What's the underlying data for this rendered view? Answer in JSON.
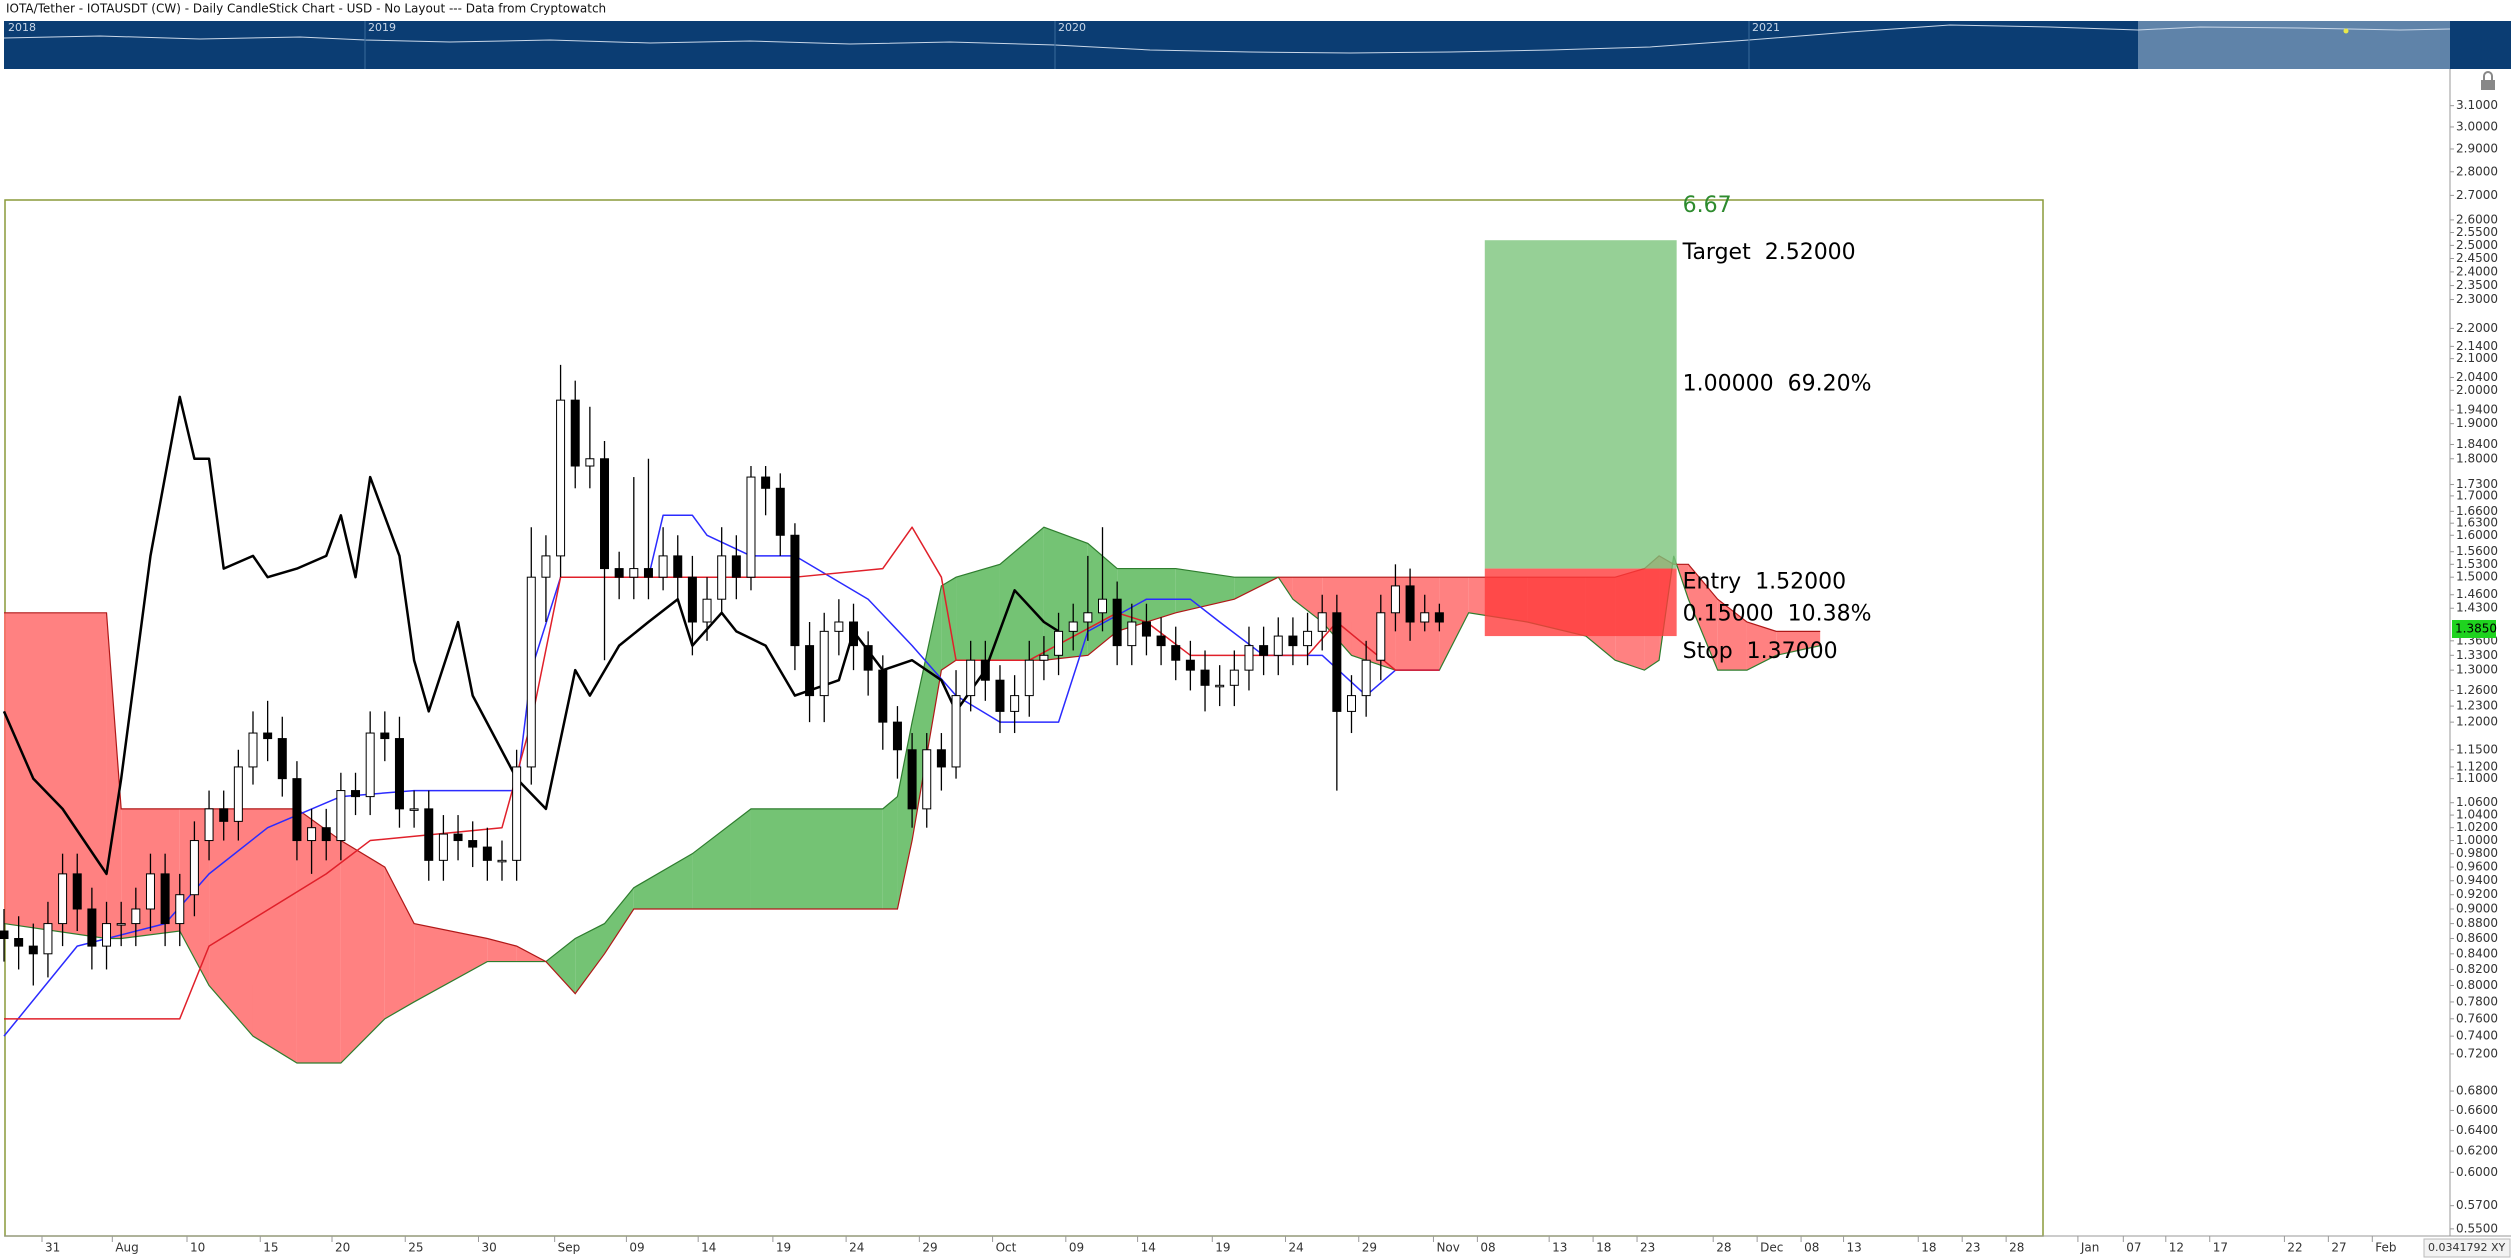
{
  "chart_data": {
    "type": "candlestick",
    "title": "IOTA/Tether - IOTAUSDT (CW) - Daily CandleStick Chart - USD - No Layout --- Data from Cryptowatch",
    "navigator_years": [
      "2018",
      "2019",
      "2020",
      "2021"
    ],
    "log_scale": true,
    "xlim": [
      0,
      167
    ],
    "ylim": [
      0.544,
      3.28
    ],
    "up_color": "#ffffff",
    "down_color": "#000000",
    "open": [
      0.87,
      0.86,
      0.85,
      0.84,
      0.88,
      0.95,
      0.9,
      0.85,
      0.88,
      0.88,
      0.9,
      0.95,
      0.88,
      0.92,
      1.0,
      1.05,
      1.03,
      1.12,
      1.18,
      1.17,
      1.1,
      1.0,
      1.02,
      1.0,
      1.08,
      1.07,
      1.18,
      1.17,
      1.05,
      1.05,
      0.97,
      1.01,
      1.0,
      0.99,
      0.97,
      0.97,
      1.12,
      1.5,
      1.55,
      1.97,
      1.78,
      1.8,
      1.52,
      1.5,
      1.52,
      1.5,
      1.55,
      1.5,
      1.4,
      1.45,
      1.55,
      1.5,
      1.75,
      1.72,
      1.6,
      1.35,
      1.25,
      1.38,
      1.4,
      1.35,
      1.3,
      1.2,
      1.15,
      1.05,
      1.15,
      1.12,
      1.25,
      1.32,
      1.28,
      1.22,
      1.25,
      1.32,
      1.33,
      1.38,
      1.4,
      1.42,
      1.45,
      1.35,
      1.4,
      1.37,
      1.35,
      1.32,
      1.3,
      1.27,
      1.27,
      1.3,
      1.35,
      1.33,
      1.37,
      1.35,
      1.38,
      1.42,
      1.22,
      1.25,
      1.32,
      1.42,
      1.48,
      1.4,
      1.42
    ],
    "high": [
      0.9,
      0.89,
      0.88,
      0.91,
      0.98,
      0.98,
      0.93,
      0.91,
      0.91,
      0.93,
      0.98,
      0.98,
      0.95,
      1.03,
      1.08,
      1.08,
      1.15,
      1.22,
      1.24,
      1.21,
      1.13,
      1.05,
      1.05,
      1.11,
      1.11,
      1.22,
      1.22,
      1.21,
      1.08,
      1.08,
      1.04,
      1.04,
      1.03,
      1.02,
      1.0,
      1.15,
      1.62,
      1.6,
      2.08,
      2.03,
      1.95,
      1.85,
      1.56,
      1.75,
      1.8,
      1.62,
      1.6,
      1.55,
      1.5,
      1.62,
      1.6,
      1.78,
      1.78,
      1.76,
      1.63,
      1.4,
      1.42,
      1.45,
      1.44,
      1.38,
      1.33,
      1.23,
      1.18,
      1.18,
      1.18,
      1.3,
      1.36,
      1.36,
      1.31,
      1.29,
      1.36,
      1.37,
      1.42,
      1.44,
      1.55,
      1.62,
      1.49,
      1.44,
      1.44,
      1.41,
      1.39,
      1.36,
      1.34,
      1.31,
      1.34,
      1.39,
      1.39,
      1.41,
      1.41,
      1.42,
      1.46,
      1.46,
      1.29,
      1.36,
      1.46,
      1.53,
      1.52,
      1.46,
      1.44
    ],
    "low": [
      0.83,
      0.82,
      0.8,
      0.81,
      0.85,
      0.87,
      0.82,
      0.82,
      0.85,
      0.85,
      0.87,
      0.85,
      0.85,
      0.89,
      0.97,
      1.0,
      1.0,
      1.09,
      1.13,
      1.07,
      0.97,
      0.95,
      0.97,
      0.97,
      1.04,
      1.04,
      1.13,
      1.02,
      1.02,
      0.94,
      0.94,
      0.97,
      0.96,
      0.94,
      0.94,
      0.94,
      1.09,
      1.4,
      1.5,
      1.72,
      1.72,
      1.32,
      1.45,
      1.45,
      1.45,
      1.47,
      1.45,
      1.33,
      1.36,
      1.42,
      1.45,
      1.47,
      1.65,
      1.55,
      1.3,
      1.2,
      1.2,
      1.33,
      1.3,
      1.25,
      1.15,
      1.1,
      1.02,
      1.02,
      1.08,
      1.1,
      1.22,
      1.24,
      1.18,
      1.18,
      1.21,
      1.28,
      1.29,
      1.34,
      1.36,
      1.38,
      1.31,
      1.31,
      1.33,
      1.31,
      1.28,
      1.26,
      1.22,
      1.23,
      1.23,
      1.26,
      1.29,
      1.29,
      1.31,
      1.31,
      1.34,
      1.08,
      1.18,
      1.21,
      1.28,
      1.38,
      1.36,
      1.38,
      1.38
    ],
    "close": [
      0.86,
      0.85,
      0.84,
      0.88,
      0.95,
      0.9,
      0.85,
      0.88,
      0.88,
      0.9,
      0.95,
      0.88,
      0.92,
      1.0,
      1.05,
      1.03,
      1.12,
      1.18,
      1.17,
      1.1,
      1.0,
      1.02,
      1.0,
      1.08,
      1.07,
      1.18,
      1.17,
      1.05,
      1.05,
      0.97,
      1.01,
      1.0,
      0.99,
      0.97,
      0.97,
      1.12,
      1.5,
      1.55,
      1.97,
      1.78,
      1.8,
      1.52,
      1.5,
      1.52,
      1.5,
      1.55,
      1.5,
      1.4,
      1.45,
      1.55,
      1.5,
      1.75,
      1.72,
      1.6,
      1.35,
      1.25,
      1.38,
      1.4,
      1.35,
      1.3,
      1.2,
      1.15,
      1.05,
      1.15,
      1.12,
      1.25,
      1.32,
      1.28,
      1.22,
      1.25,
      1.32,
      1.33,
      1.38,
      1.4,
      1.42,
      1.45,
      1.35,
      1.4,
      1.37,
      1.35,
      1.32,
      1.3,
      1.27,
      1.27,
      1.3,
      1.35,
      1.33,
      1.37,
      1.35,
      1.38,
      1.42,
      1.22,
      1.25,
      1.32,
      1.42,
      1.48,
      1.4,
      1.42,
      1.4
    ],
    "cloud": {
      "up_color": "#5cb85c",
      "down_color": "#ff6b6b",
      "x": [
        0,
        7,
        8,
        12,
        14,
        17,
        20,
        23,
        26,
        28,
        33,
        35,
        37,
        39,
        41,
        43,
        47,
        51,
        60,
        61,
        62,
        64,
        65,
        68,
        71,
        74,
        76,
        80,
        84,
        87,
        88,
        90,
        92,
        95,
        98,
        100,
        104,
        108,
        110,
        112,
        113,
        114,
        115,
        117,
        119,
        121,
        124
      ],
      "span_a": [
        0.88,
        0.86,
        0.86,
        0.87,
        0.8,
        0.74,
        0.71,
        0.71,
        0.76,
        0.78,
        0.83,
        0.83,
        0.83,
        0.86,
        0.88,
        0.93,
        0.98,
        1.05,
        1.05,
        1.07,
        1.2,
        1.48,
        1.5,
        1.53,
        1.62,
        1.58,
        1.52,
        1.52,
        1.5,
        1.5,
        1.45,
        1.4,
        1.33,
        1.3,
        1.3,
        1.42,
        1.4,
        1.37,
        1.32,
        1.3,
        1.32,
        1.55,
        1.45,
        1.3,
        1.3,
        1.33,
        1.35
      ],
      "span_b": [
        1.42,
        1.42,
        1.05,
        1.05,
        1.05,
        1.05,
        1.05,
        1.0,
        0.96,
        0.88,
        0.86,
        0.85,
        0.83,
        0.79,
        0.84,
        0.9,
        0.9,
        0.9,
        0.9,
        0.9,
        1.0,
        1.3,
        1.32,
        1.32,
        1.32,
        1.33,
        1.38,
        1.42,
        1.45,
        1.5,
        1.5,
        1.5,
        1.5,
        1.5,
        1.5,
        1.5,
        1.5,
        1.5,
        1.5,
        1.52,
        1.55,
        1.53,
        1.53,
        1.45,
        1.4,
        1.38,
        1.38
      ]
    },
    "lines": [
      {
        "color": "#2b2bff",
        "width": 1.5,
        "x": [
          0,
          5,
          11,
          14,
          18,
          23,
          28,
          35,
          36,
          38,
          44,
          45,
          47,
          48,
          51,
          54,
          59,
          62,
          65,
          68,
          72,
          74,
          78,
          81,
          83,
          86,
          90,
          93,
          95,
          98
        ],
        "values": [
          0.74,
          0.85,
          0.88,
          0.95,
          1.02,
          1.07,
          1.08,
          1.08,
          1.3,
          1.5,
          1.5,
          1.65,
          1.65,
          1.6,
          1.55,
          1.55,
          1.45,
          1.35,
          1.25,
          1.2,
          1.2,
          1.38,
          1.45,
          1.45,
          1.4,
          1.33,
          1.33,
          1.25,
          1.3,
          1.3
        ]
      },
      {
        "color": "#e0202a",
        "width": 1.5,
        "x": [
          0,
          12,
          14,
          22,
          25,
          34,
          36,
          38,
          48,
          54,
          60,
          62,
          64,
          65,
          70,
          76,
          78,
          81,
          89,
          91,
          95,
          98
        ],
        "values": [
          0.76,
          0.76,
          0.85,
          0.95,
          1.0,
          1.02,
          1.2,
          1.5,
          1.5,
          1.5,
          1.52,
          1.62,
          1.5,
          1.32,
          1.32,
          1.42,
          1.4,
          1.33,
          1.33,
          1.4,
          1.3,
          1.3
        ]
      },
      {
        "color": "#000000",
        "width": 2.5,
        "x": [
          0,
          2,
          4,
          7,
          8,
          10,
          12,
          13,
          14,
          15,
          17,
          18,
          20,
          22,
          23,
          24,
          25,
          27,
          28,
          29,
          31,
          32,
          35,
          37,
          39,
          40,
          42,
          44,
          46,
          47,
          49,
          50,
          52,
          54,
          57,
          58,
          60,
          62,
          64,
          65,
          67,
          69,
          71,
          72
        ],
        "values": [
          1.22,
          1.1,
          1.05,
          0.95,
          1.1,
          1.55,
          1.98,
          1.8,
          1.8,
          1.52,
          1.55,
          1.5,
          1.52,
          1.55,
          1.65,
          1.5,
          1.75,
          1.55,
          1.32,
          1.22,
          1.4,
          1.25,
          1.1,
          1.05,
          1.3,
          1.25,
          1.35,
          1.4,
          1.45,
          1.35,
          1.42,
          1.38,
          1.35,
          1.25,
          1.28,
          1.38,
          1.3,
          1.32,
          1.28,
          1.22,
          1.3,
          1.47,
          1.4,
          1.38
        ]
      }
    ],
    "position": {
      "x": [
        101.1,
        114.2
      ],
      "ratio": 6.67,
      "ratio_color": "#2e8b2e",
      "profit_color": "#7cc47c",
      "loss_color": "#ff3b3b",
      "target": {
        "name": "Target",
        "value": 2.52,
        "label": "2.52000"
      },
      "reward": {
        "label": "1.00000",
        "percent": "69.20%"
      },
      "entry": {
        "name": "Entry",
        "value": 1.52,
        "label": "1.52000"
      },
      "risk": {
        "label": "0.15000",
        "percent": "10.38%"
      },
      "stop": {
        "name": "Stop",
        "value": 1.37,
        "label": "1.37000"
      }
    },
    "last_price": {
      "value": 1.385,
      "label": "1.3850",
      "color": "#1fd31f"
    },
    "corner_readout": "0.0341792 XY",
    "yticks": [
      {
        "value": 3.1,
        "label": "3.1000"
      },
      {
        "value": 3.0,
        "label": "3.0000"
      },
      {
        "value": 2.9,
        "label": "2.9000"
      },
      {
        "value": 2.8,
        "label": "2.8000"
      },
      {
        "value": 2.7,
        "label": "2.7000"
      },
      {
        "value": 2.6,
        "label": "2.6000"
      },
      {
        "value": 2.55,
        "label": "2.5500"
      },
      {
        "value": 2.5,
        "label": "2.5000"
      },
      {
        "value": 2.45,
        "label": "2.4500"
      },
      {
        "value": 2.4,
        "label": "2.4000"
      },
      {
        "value": 2.35,
        "label": "2.3500"
      },
      {
        "value": 2.3,
        "label": "2.3000"
      },
      {
        "value": 2.2,
        "label": "2.2000"
      },
      {
        "value": 2.14,
        "label": "2.1400"
      },
      {
        "value": 2.1,
        "label": "2.1000"
      },
      {
        "value": 2.04,
        "label": "2.0400"
      },
      {
        "value": 2.0,
        "label": "2.0000"
      },
      {
        "value": 1.94,
        "label": "1.9400"
      },
      {
        "value": 1.9,
        "label": "1.9000"
      },
      {
        "value": 1.84,
        "label": "1.8400"
      },
      {
        "value": 1.8,
        "label": "1.8000"
      },
      {
        "value": 1.73,
        "label": "1.7300"
      },
      {
        "value": 1.7,
        "label": "1.7000"
      },
      {
        "value": 1.66,
        "label": "1.6600"
      },
      {
        "value": 1.63,
        "label": "1.6300"
      },
      {
        "value": 1.6,
        "label": "1.6000"
      },
      {
        "value": 1.56,
        "label": "1.5600"
      },
      {
        "value": 1.53,
        "label": "1.5300"
      },
      {
        "value": 1.5,
        "label": "1.5000"
      },
      {
        "value": 1.46,
        "label": "1.4600"
      },
      {
        "value": 1.43,
        "label": "1.4300"
      },
      {
        "value": 1.36,
        "label": "1.3600"
      },
      {
        "value": 1.33,
        "label": "1.3300"
      },
      {
        "value": 1.3,
        "label": "1.3000"
      },
      {
        "value": 1.26,
        "label": "1.2600"
      },
      {
        "value": 1.23,
        "label": "1.2300"
      },
      {
        "value": 1.2,
        "label": "1.2000"
      },
      {
        "value": 1.15,
        "label": "1.1500"
      },
      {
        "value": 1.12,
        "label": "1.1200"
      },
      {
        "value": 1.1,
        "label": "1.1000"
      },
      {
        "value": 1.06,
        "label": "1.0600"
      },
      {
        "value": 1.04,
        "label": "1.0400"
      },
      {
        "value": 1.02,
        "label": "1.0200"
      },
      {
        "value": 1.0,
        "label": "1.0000"
      },
      {
        "value": 0.98,
        "label": "0.9800"
      },
      {
        "value": 0.96,
        "label": "0.9600"
      },
      {
        "value": 0.94,
        "label": "0.9400"
      },
      {
        "value": 0.92,
        "label": "0.9200"
      },
      {
        "value": 0.9,
        "label": "0.9000"
      },
      {
        "value": 0.88,
        "label": "0.8800"
      },
      {
        "value": 0.86,
        "label": "0.8600"
      },
      {
        "value": 0.84,
        "label": "0.8400"
      },
      {
        "value": 0.82,
        "label": "0.8200"
      },
      {
        "value": 0.8,
        "label": "0.8000"
      },
      {
        "value": 0.78,
        "label": "0.7800"
      },
      {
        "value": 0.76,
        "label": "0.7600"
      },
      {
        "value": 0.74,
        "label": "0.7400"
      },
      {
        "value": 0.72,
        "label": "0.7200"
      },
      {
        "value": 0.68,
        "label": "0.6800"
      },
      {
        "value": 0.66,
        "label": "0.6600"
      },
      {
        "value": 0.64,
        "label": "0.6400"
      },
      {
        "value": 0.62,
        "label": "0.6200"
      },
      {
        "value": 0.6,
        "label": "0.6000"
      },
      {
        "value": 0.57,
        "label": "0.5700"
      },
      {
        "value": 0.55,
        "label": "0.5500"
      }
    ],
    "xticks": [
      {
        "value": 2.8,
        "label": "31"
      },
      {
        "value": 7.6,
        "label": "Aug"
      },
      {
        "value": 12.7,
        "label": "10"
      },
      {
        "value": 17.7,
        "label": "15"
      },
      {
        "value": 22.6,
        "label": "20"
      },
      {
        "value": 27.6,
        "label": "25"
      },
      {
        "value": 32.6,
        "label": "30"
      },
      {
        "value": 37.8,
        "label": "Sep"
      },
      {
        "value": 42.7,
        "label": "09"
      },
      {
        "value": 47.6,
        "label": "14"
      },
      {
        "value": 52.7,
        "label": "19"
      },
      {
        "value": 57.7,
        "label": "24"
      },
      {
        "value": 62.7,
        "label": "29"
      },
      {
        "value": 67.7,
        "label": "Oct"
      },
      {
        "value": 72.7,
        "label": "09"
      },
      {
        "value": 77.6,
        "label": "14"
      },
      {
        "value": 82.7,
        "label": "19"
      },
      {
        "value": 87.7,
        "label": "24"
      },
      {
        "value": 92.7,
        "label": "29"
      },
      {
        "value": 97.8,
        "label": "Nov"
      },
      {
        "value": 100.8,
        "label": "08"
      },
      {
        "value": 105.7,
        "label": "13"
      },
      {
        "value": 108.7,
        "label": "18"
      },
      {
        "value": 111.7,
        "label": "23"
      },
      {
        "value": 116.9,
        "label": "28"
      },
      {
        "value": 119.9,
        "label": "Dec"
      },
      {
        "value": 122.9,
        "label": "08"
      },
      {
        "value": 125.8,
        "label": "13"
      },
      {
        "value": 130.9,
        "label": "18"
      },
      {
        "value": 133.9,
        "label": "23"
      },
      {
        "value": 136.9,
        "label": "28"
      },
      {
        "value": 141.8,
        "label": "Jan"
      },
      {
        "value": 144.9,
        "label": "07"
      },
      {
        "value": 147.8,
        "label": "12"
      },
      {
        "value": 150.8,
        "label": "17"
      },
      {
        "value": 155.9,
        "label": "22"
      },
      {
        "value": 158.9,
        "label": "27"
      },
      {
        "value": 161.9,
        "label": "Feb"
      }
    ]
  }
}
